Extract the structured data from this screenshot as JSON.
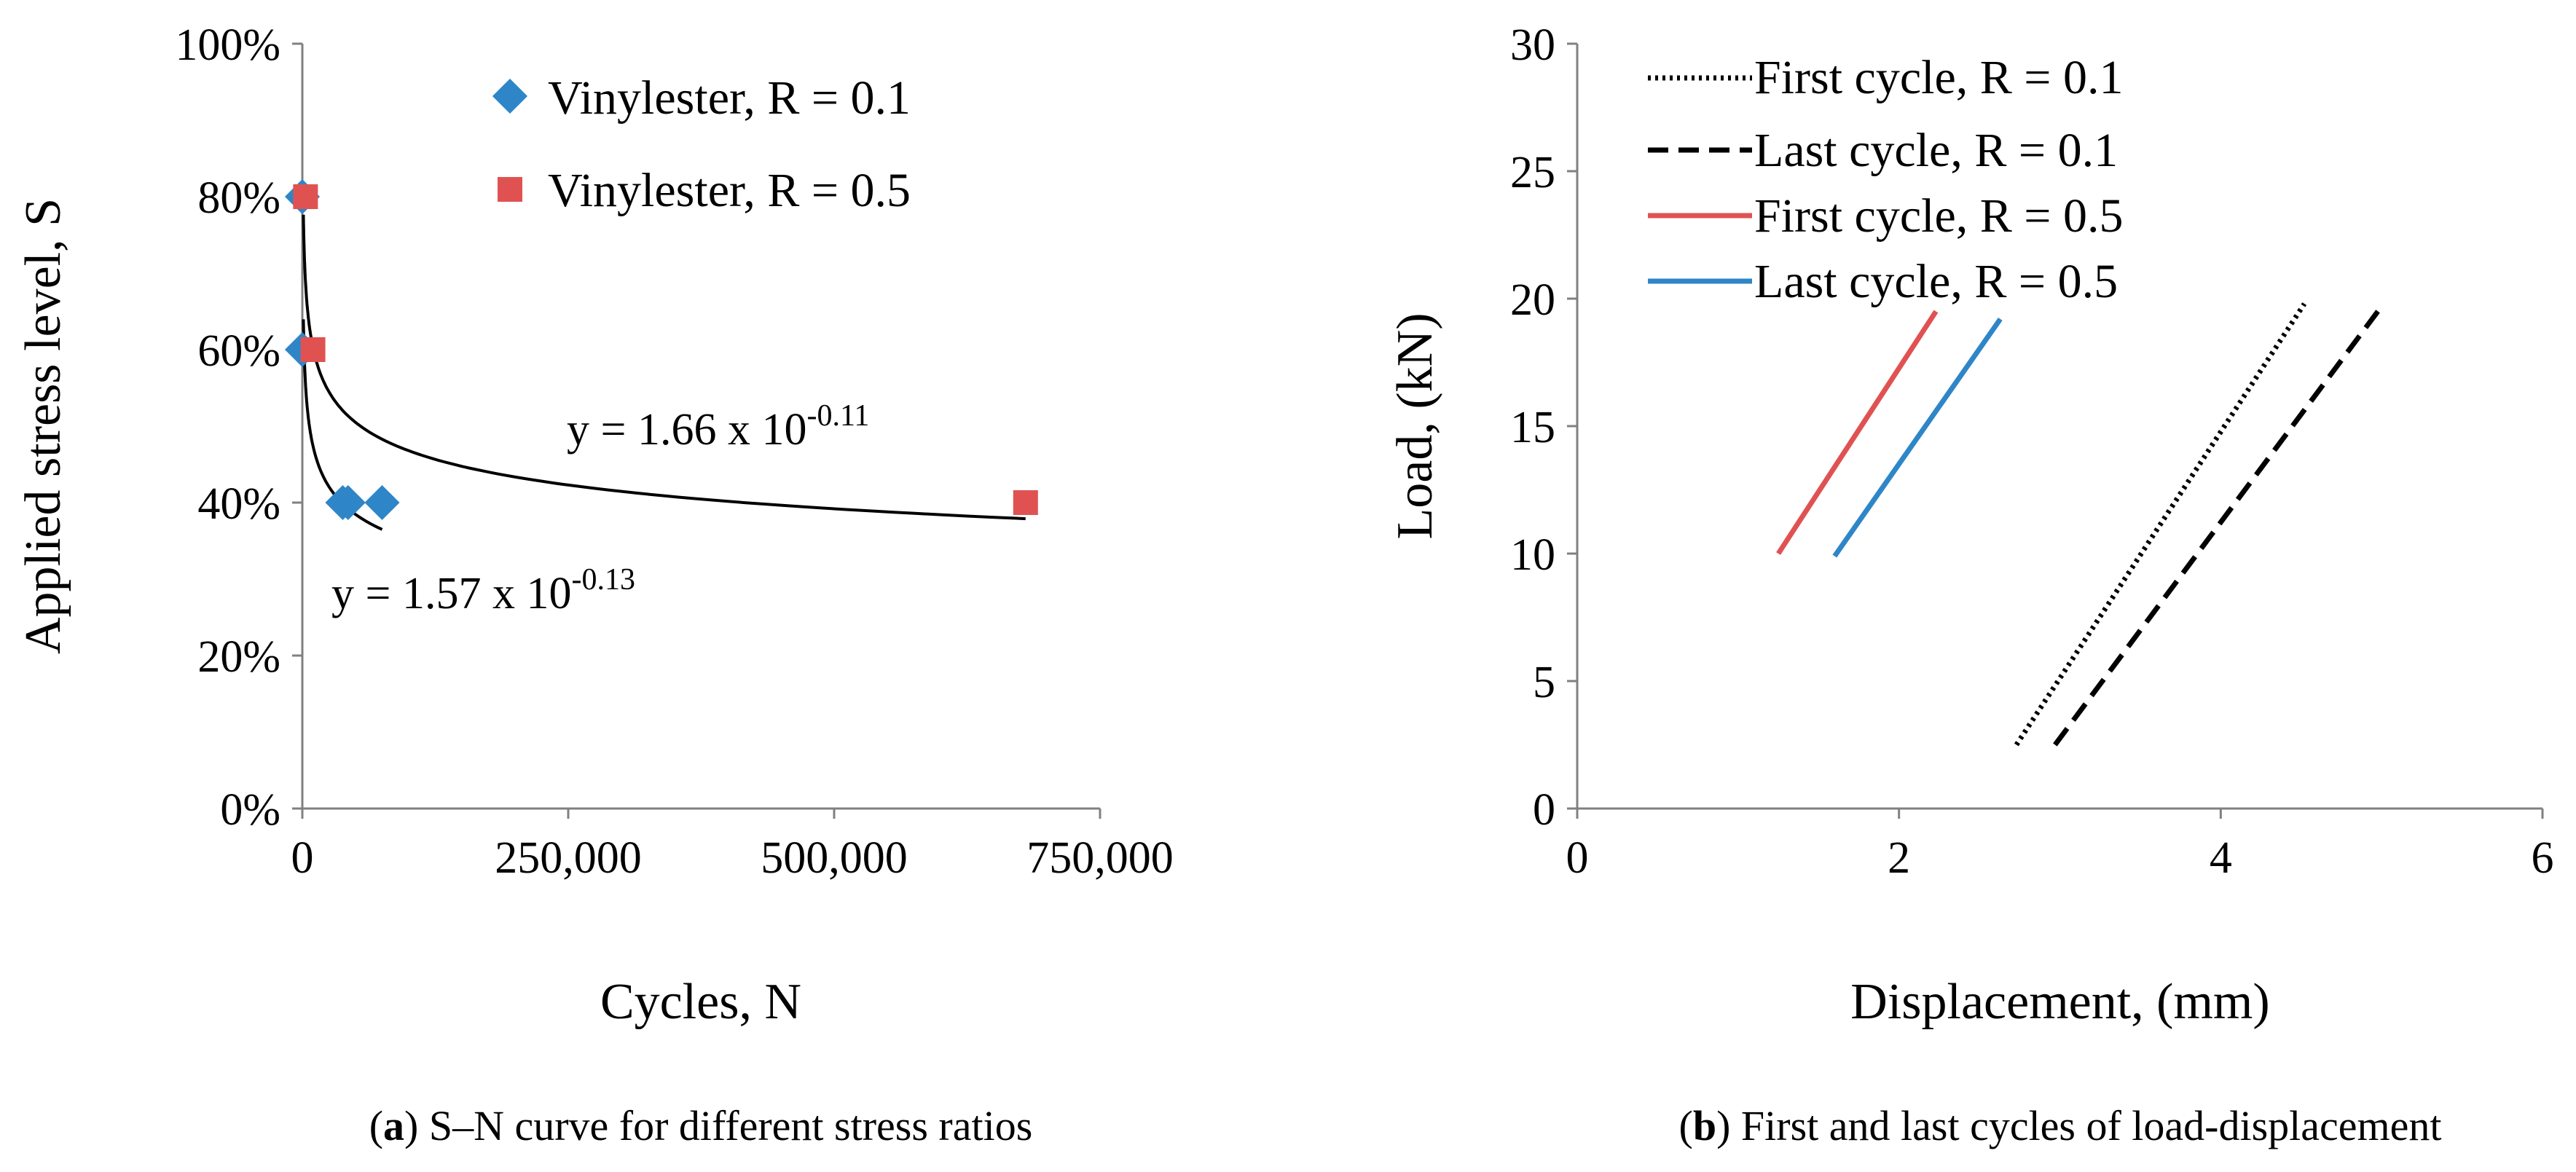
{
  "chart_data": [
    {
      "type": "scatter",
      "title": "",
      "xlabel": "Cycles, N",
      "ylabel": "Applied stress level, S",
      "xlim": [
        0,
        750000
      ],
      "ylim": [
        0,
        100
      ],
      "x_ticks": [
        0,
        250000,
        500000,
        750000
      ],
      "x_tick_labels": [
        "0",
        "250,000",
        "500,000",
        "750,000"
      ],
      "y_ticks": [
        0,
        20,
        40,
        60,
        80,
        100
      ],
      "y_tick_labels": [
        "0%",
        "20%",
        "40%",
        "60%",
        "80%",
        "100%"
      ],
      "legend_position": "top-right",
      "series": [
        {
          "name": "Vinylester, R = 0.1",
          "marker": "diamond",
          "color": "#2E86C8",
          "x": [
            1,
            1,
            38000,
            43000,
            75000
          ],
          "y": [
            80,
            60,
            40,
            40,
            40
          ]
        },
        {
          "name": "Vinylester, R = 0.5",
          "marker": "square",
          "color": "#E05252",
          "x": [
            3000,
            10000,
            680000
          ],
          "y": [
            80,
            60,
            40
          ]
        }
      ],
      "trendlines": [
        {
          "label": "y = 1.66 x 10",
          "exponent": "-0.11",
          "coef": 1.66,
          "power": -0.11,
          "x_range": [
            1000,
            680000
          ]
        },
        {
          "label": "y = 1.57 x 10",
          "exponent": "-0.13",
          "coef": 1.57,
          "power": -0.13,
          "x_range": [
            1000,
            75000
          ]
        }
      ],
      "caption_prefix": "(",
      "caption_bold": "a",
      "caption_text": ") S–N curve for different stress ratios"
    },
    {
      "type": "line",
      "title": "",
      "xlabel": "Displacement, (mm)",
      "ylabel": "Load, (kN)",
      "xlim": [
        0,
        6
      ],
      "ylim": [
        0,
        30
      ],
      "x_ticks": [
        0,
        2,
        4,
        6
      ],
      "x_tick_labels": [
        "0",
        "2",
        "4",
        "6"
      ],
      "y_ticks": [
        0,
        5,
        10,
        15,
        20,
        25,
        30
      ],
      "y_tick_labels": [
        "0",
        "5",
        "10",
        "15",
        "20",
        "25",
        "30"
      ],
      "legend_position": "top-left",
      "series": [
        {
          "name": "First cycle, R = 0.1",
          "style": "dotted",
          "color": "#000000",
          "x": [
            2.73,
            4.52
          ],
          "y": [
            2.5,
            19.8
          ]
        },
        {
          "name": "Last cycle, R = 0.1",
          "style": "dashed",
          "color": "#000000",
          "x": [
            2.97,
            5.0
          ],
          "y": [
            2.5,
            19.7
          ]
        },
        {
          "name": "First cycle, R = 0.5",
          "style": "solid",
          "color": "#E05252",
          "x": [
            1.25,
            2.23
          ],
          "y": [
            10.0,
            19.5
          ]
        },
        {
          "name": "Last cycle, R = 0.5",
          "style": "solid",
          "color": "#2E86C8",
          "x": [
            1.6,
            2.63
          ],
          "y": [
            9.9,
            19.2
          ]
        }
      ],
      "caption_prefix": "(",
      "caption_bold": "b",
      "caption_text": ") First and last cycles of load-displacement"
    }
  ]
}
